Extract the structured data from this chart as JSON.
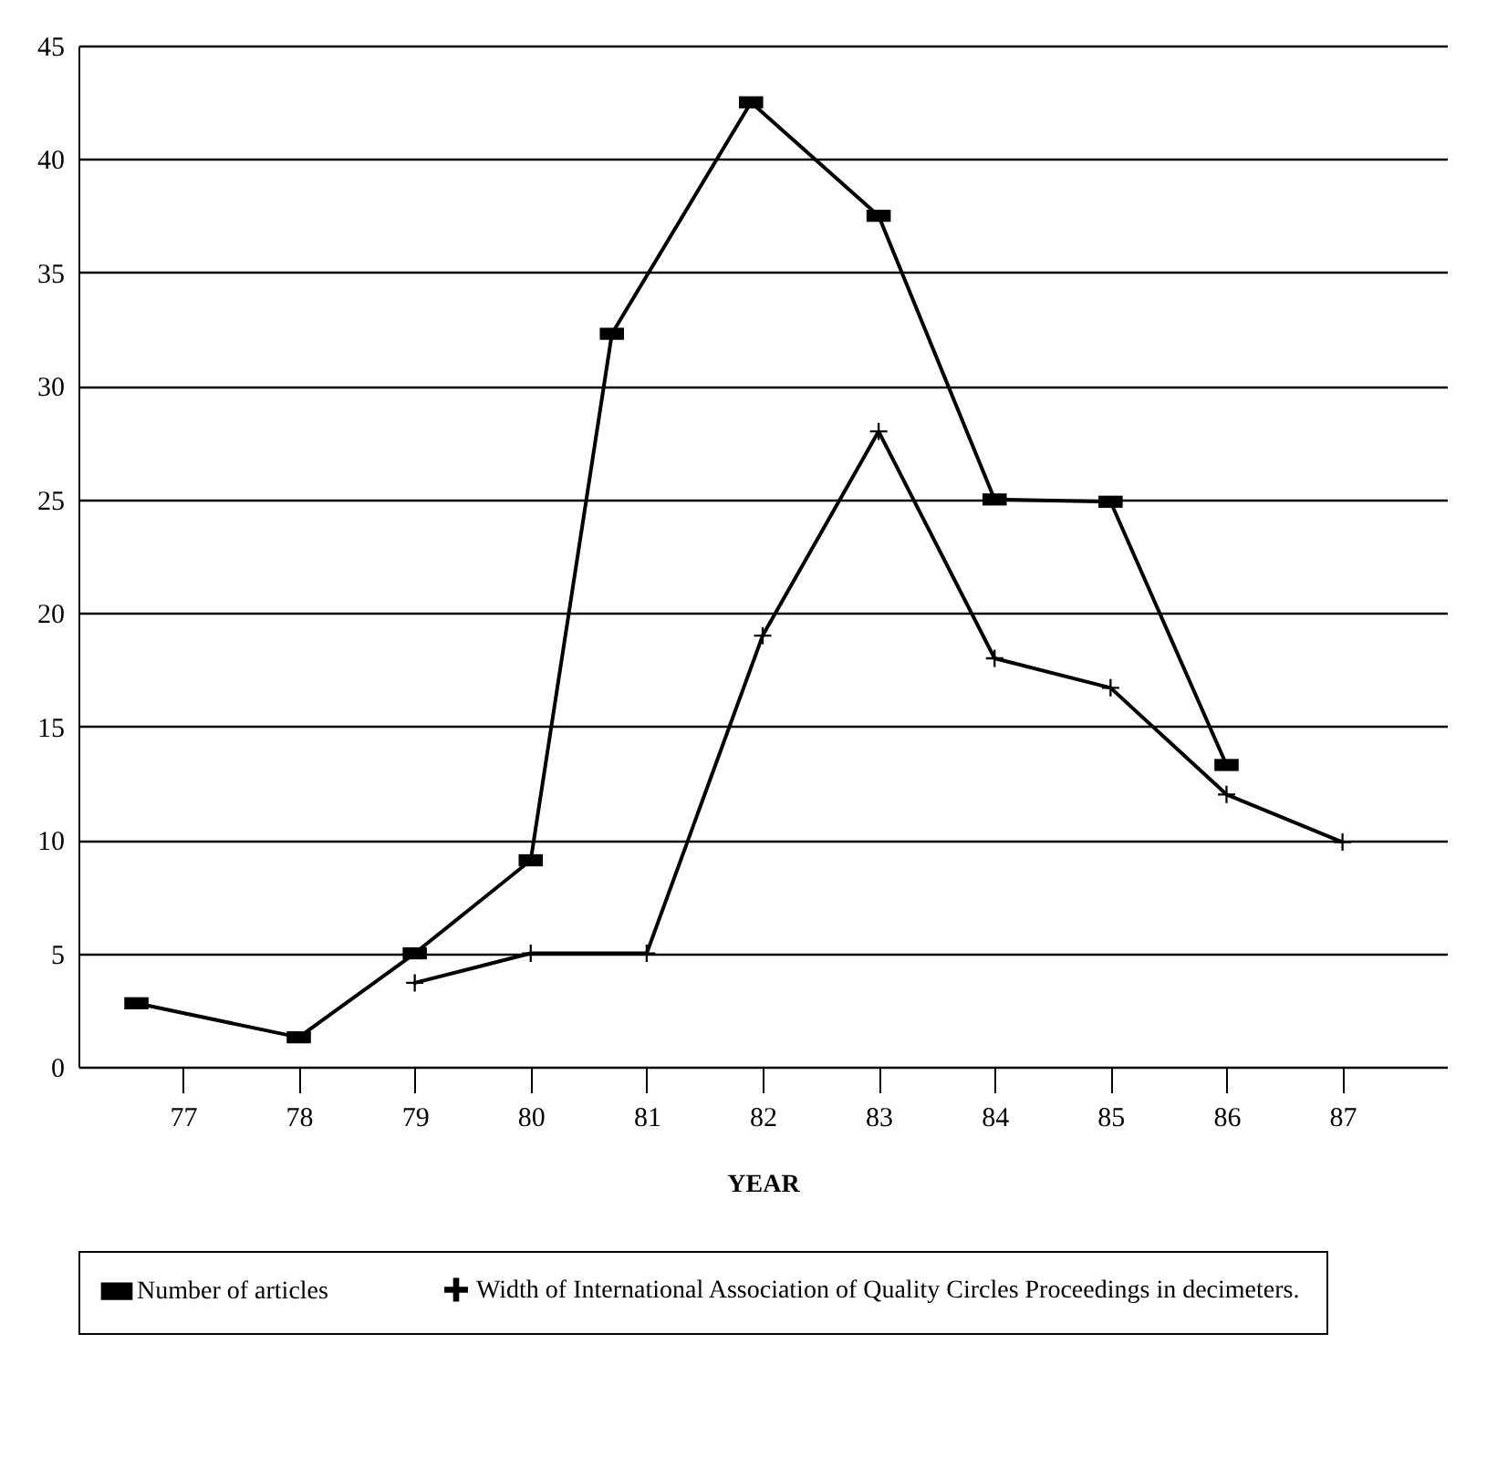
{
  "chart_data": {
    "type": "line",
    "xlabel": "YEAR",
    "xlim": [
      76.1,
      87.9
    ],
    "xticks": [
      77,
      78,
      79,
      80,
      81,
      82,
      83,
      84,
      85,
      86,
      87
    ],
    "ylim": [
      0,
      45
    ],
    "yticks": [
      0,
      5,
      10,
      15,
      20,
      25,
      30,
      35,
      40,
      45
    ],
    "grid": "y",
    "legend": "bottom",
    "series": [
      {
        "name": "Number of articles",
        "color": "#000000",
        "marker": "square",
        "x": [
          76.6,
          78,
          79,
          80,
          80.7,
          81.9,
          83,
          84,
          85,
          86
        ],
        "values": [
          2.8,
          1.3,
          5,
          9.1,
          32.3,
          42.5,
          37.5,
          25,
          24.9,
          13.3
        ]
      },
      {
        "name": "Width of International Association of Quality Circles Proceedings in decimeters.",
        "color": "#000000",
        "marker": "cross",
        "x": [
          79,
          80,
          81,
          82,
          83,
          84,
          85,
          86,
          87
        ],
        "values": [
          3.7,
          5,
          5,
          19,
          28,
          18,
          16.7,
          12,
          9.9
        ]
      }
    ]
  }
}
